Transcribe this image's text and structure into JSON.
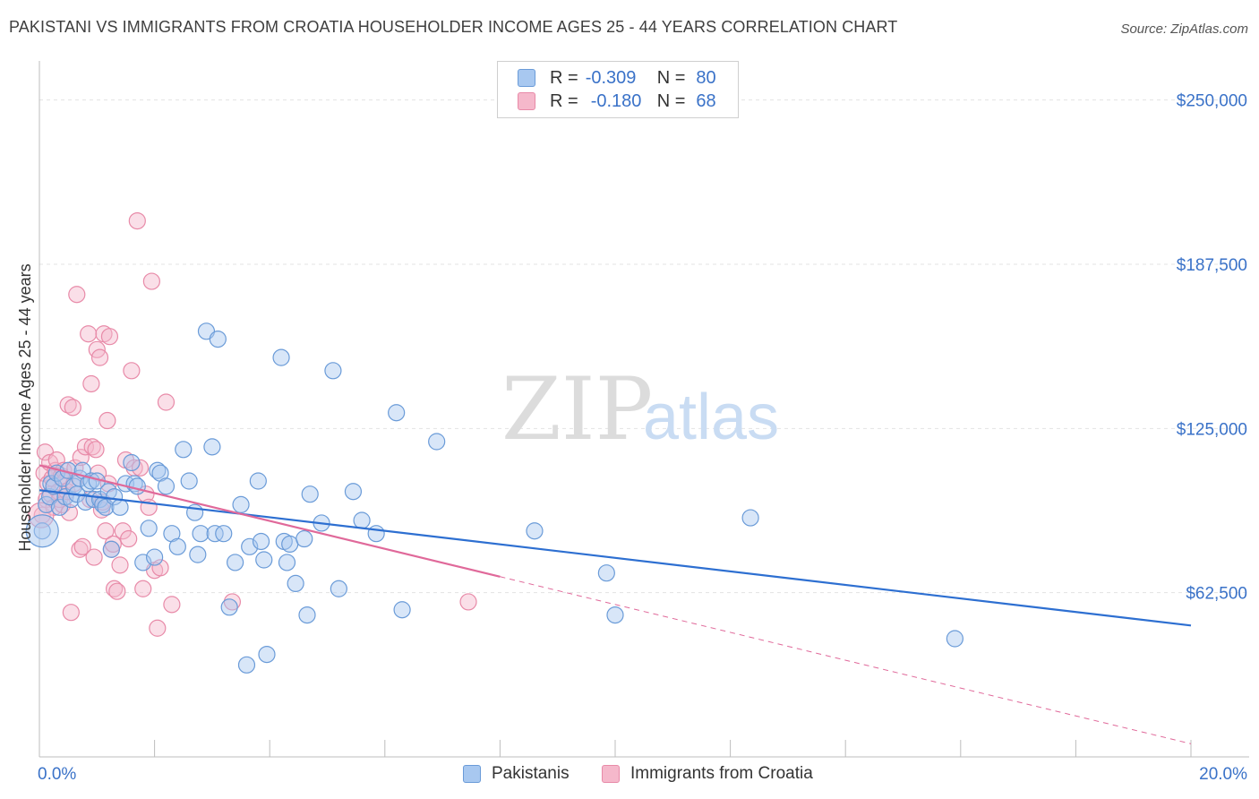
{
  "title": "PAKISTANI VS IMMIGRANTS FROM CROATIA HOUSEHOLDER INCOME AGES 25 - 44 YEARS CORRELATION CHART",
  "source": "Source: ZipAtlas.com",
  "watermark": {
    "zip": "ZIP",
    "atlas": "atlas"
  },
  "legend_top": [
    {
      "r_label": "R =",
      "r_value": "-0.309",
      "n_label": "N =",
      "n_value": "80"
    },
    {
      "r_label": "R =",
      "r_value": "-0.180",
      "n_label": "N =",
      "n_value": "68"
    }
  ],
  "legend_bottom": [
    "Pakistanis",
    "Immigrants from Croatia"
  ],
  "colors": {
    "blue_fill": "#a8c8f0",
    "blue_stroke": "#6a9bd8",
    "blue_line": "#2d6fd1",
    "pink_fill": "#f5b8cb",
    "pink_stroke": "#e88aa8",
    "pink_line": "#e0699a",
    "label_blue": "#3a72c8",
    "grid": "#e3e3e3"
  },
  "chart_data": {
    "type": "scatter",
    "title": "PAKISTANI VS IMMIGRANTS FROM CROATIA HOUSEHOLDER INCOME AGES 25 - 44 YEARS CORRELATION CHART",
    "xlabel": "",
    "ylabel": "Householder Income Ages 25 - 44 years",
    "xlim": [
      0,
      20
    ],
    "ylim": [
      0,
      262500
    ],
    "x_tick_labels": [
      "0.0%",
      "20.0%"
    ],
    "y_tick_values": [
      62500,
      125000,
      187500,
      250000
    ],
    "y_tick_labels": [
      "$62,500",
      "$125,000",
      "$187,500",
      "$250,000"
    ],
    "grid": true,
    "legend_position": "bottom",
    "series": [
      {
        "name": "Pakistanis",
        "r": -0.309,
        "n": 80,
        "trend": {
          "x": [
            0,
            20
          ],
          "y": [
            101500,
            50000
          ],
          "dashed_extension": false
        },
        "points": [
          [
            0.05,
            86000
          ],
          [
            0.12,
            96000
          ],
          [
            0.18,
            99000
          ],
          [
            0.2,
            104000
          ],
          [
            0.25,
            103000
          ],
          [
            0.3,
            108000
          ],
          [
            0.35,
            95000
          ],
          [
            0.4,
            106000
          ],
          [
            0.45,
            99000
          ],
          [
            0.5,
            109000
          ],
          [
            0.55,
            98000
          ],
          [
            0.6,
            103000
          ],
          [
            0.65,
            100000
          ],
          [
            0.7,
            106000
          ],
          [
            0.75,
            109000
          ],
          [
            0.8,
            97000
          ],
          [
            0.85,
            104000
          ],
          [
            0.9,
            105000
          ],
          [
            0.95,
            98000
          ],
          [
            1.0,
            105000
          ],
          [
            1.05,
            98000
          ],
          [
            1.1,
            96000
          ],
          [
            1.15,
            95000
          ],
          [
            1.2,
            101000
          ],
          [
            1.25,
            79000
          ],
          [
            1.3,
            99000
          ],
          [
            1.4,
            95000
          ],
          [
            1.5,
            104000
          ],
          [
            1.6,
            112000
          ],
          [
            1.65,
            104000
          ],
          [
            1.7,
            103000
          ],
          [
            1.8,
            74000
          ],
          [
            1.9,
            87000
          ],
          [
            2.0,
            76000
          ],
          [
            2.05,
            109000
          ],
          [
            2.1,
            108000
          ],
          [
            2.2,
            103000
          ],
          [
            2.3,
            85000
          ],
          [
            2.4,
            80000
          ],
          [
            2.5,
            117000
          ],
          [
            2.6,
            105000
          ],
          [
            2.7,
            93000
          ],
          [
            2.75,
            77000
          ],
          [
            2.8,
            85000
          ],
          [
            2.9,
            162000
          ],
          [
            3.0,
            118000
          ],
          [
            3.05,
            85000
          ],
          [
            3.1,
            159000
          ],
          [
            3.2,
            85000
          ],
          [
            3.3,
            57000
          ],
          [
            3.4,
            74000
          ],
          [
            3.5,
            96000
          ],
          [
            3.6,
            35000
          ],
          [
            3.65,
            80000
          ],
          [
            3.8,
            105000
          ],
          [
            3.85,
            82000
          ],
          [
            3.9,
            75000
          ],
          [
            3.95,
            39000
          ],
          [
            4.2,
            152000
          ],
          [
            4.25,
            82000
          ],
          [
            4.3,
            74000
          ],
          [
            4.35,
            81000
          ],
          [
            4.45,
            66000
          ],
          [
            4.6,
            83000
          ],
          [
            4.65,
            54000
          ],
          [
            4.7,
            100000
          ],
          [
            4.9,
            89000
          ],
          [
            5.1,
            147000
          ],
          [
            5.2,
            64000
          ],
          [
            5.45,
            101000
          ],
          [
            5.6,
            90000
          ],
          [
            5.85,
            85000
          ],
          [
            6.2,
            131000
          ],
          [
            6.3,
            56000
          ],
          [
            6.9,
            120000
          ],
          [
            8.6,
            86000
          ],
          [
            9.85,
            70000
          ],
          [
            10.0,
            54000
          ],
          [
            12.35,
            91000
          ],
          [
            15.9,
            45000
          ]
        ]
      },
      {
        "name": "Immigrants from Croatia",
        "r": -0.18,
        "n": 68,
        "trend": {
          "x": [
            0,
            20
          ],
          "y": [
            111000,
            5000
          ],
          "solid_until_x": 8.0,
          "dashed_extension": true
        },
        "points": [
          [
            0.05,
            92000
          ],
          [
            0.08,
            108000
          ],
          [
            0.1,
            116000
          ],
          [
            0.12,
            98000
          ],
          [
            0.15,
            104000
          ],
          [
            0.18,
            112000
          ],
          [
            0.2,
            100000
          ],
          [
            0.22,
            106000
          ],
          [
            0.25,
            95000
          ],
          [
            0.28,
            109000
          ],
          [
            0.3,
            113000
          ],
          [
            0.33,
            101000
          ],
          [
            0.35,
            98000
          ],
          [
            0.38,
            107000
          ],
          [
            0.4,
            96000
          ],
          [
            0.42,
            109000
          ],
          [
            0.45,
            105000
          ],
          [
            0.48,
            101000
          ],
          [
            0.5,
            134000
          ],
          [
            0.52,
            93000
          ],
          [
            0.55,
            55000
          ],
          [
            0.58,
            133000
          ],
          [
            0.6,
            104000
          ],
          [
            0.62,
            110000
          ],
          [
            0.65,
            176000
          ],
          [
            0.7,
            79000
          ],
          [
            0.72,
            114000
          ],
          [
            0.75,
            80000
          ],
          [
            0.8,
            118000
          ],
          [
            0.85,
            161000
          ],
          [
            0.88,
            98000
          ],
          [
            0.9,
            142000
          ],
          [
            0.92,
            118000
          ],
          [
            0.95,
            76000
          ],
          [
            0.98,
            117000
          ],
          [
            1.0,
            155000
          ],
          [
            1.02,
            108000
          ],
          [
            1.05,
            152000
          ],
          [
            1.08,
            94000
          ],
          [
            1.1,
            97000
          ],
          [
            1.12,
            161000
          ],
          [
            1.15,
            86000
          ],
          [
            1.18,
            128000
          ],
          [
            1.2,
            104000
          ],
          [
            1.22,
            160000
          ],
          [
            1.25,
            79000
          ],
          [
            1.28,
            81000
          ],
          [
            1.3,
            64000
          ],
          [
            1.35,
            63000
          ],
          [
            1.4,
            73000
          ],
          [
            1.45,
            86000
          ],
          [
            1.5,
            113000
          ],
          [
            1.55,
            83000
          ],
          [
            1.6,
            147000
          ],
          [
            1.65,
            110000
          ],
          [
            1.7,
            204000
          ],
          [
            1.75,
            110000
          ],
          [
            1.8,
            64000
          ],
          [
            1.85,
            100000
          ],
          [
            1.9,
            95000
          ],
          [
            1.95,
            181000
          ],
          [
            2.0,
            71000
          ],
          [
            2.05,
            49000
          ],
          [
            2.1,
            72000
          ],
          [
            2.2,
            135000
          ],
          [
            2.3,
            58000
          ],
          [
            3.35,
            59000
          ],
          [
            7.45,
            59000
          ]
        ]
      }
    ]
  }
}
